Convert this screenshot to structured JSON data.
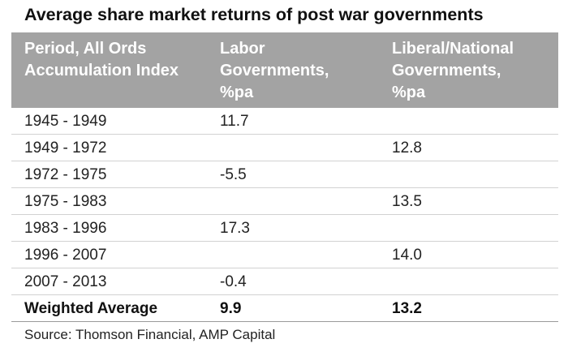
{
  "title": "Average share market returns of post war governments",
  "table": {
    "headers": [
      "Period, All Ords\nAccumulation Index",
      "Labor\nGovernments,\n%pa",
      "Liberal/National\nGovernments,\n%pa"
    ],
    "rows": [
      [
        "1945 - 1949",
        "11.7",
        ""
      ],
      [
        "1949 - 1972",
        "",
        "12.8"
      ],
      [
        "1972 - 1975",
        "-5.5",
        ""
      ],
      [
        "1975 - 1983",
        "",
        "13.5"
      ],
      [
        "1983 - 1996",
        "17.3",
        ""
      ],
      [
        "1996 - 2007",
        "",
        "14.0"
      ],
      [
        "2007 - 2013",
        "-0.4",
        ""
      ]
    ],
    "summary": [
      "Weighted Average",
      "9.9",
      "13.2"
    ]
  },
  "source": "Source: Thomson Financial, AMP Capital",
  "colors": {
    "header_background": "#a3a3a3",
    "header_text": "#ffffff",
    "row_divider": "#d2d2d2"
  }
}
